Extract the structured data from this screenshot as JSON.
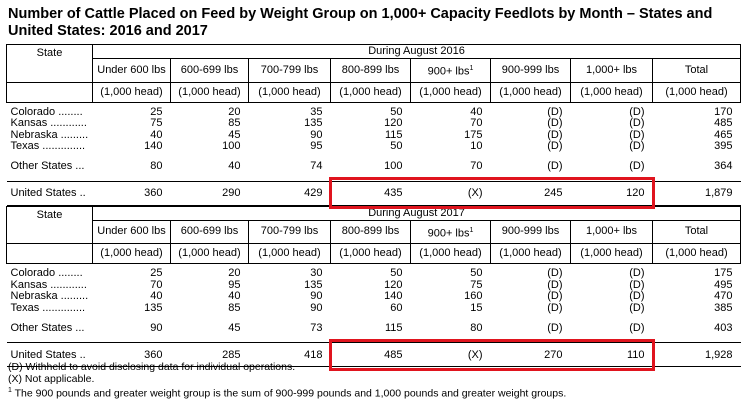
{
  "title": "Number of Cattle Placed on Feed by Weight Group on 1,000+ Capacity Feedlots by Month – States and United States: 2016 and 2017",
  "sections": [
    {
      "period": "During August 2016",
      "state_header": "State",
      "columns": [
        {
          "text": "Under 600 lbs"
        },
        {
          "text": "600-699 lbs"
        },
        {
          "text": "700-799 lbs"
        },
        {
          "text": "800-899 lbs"
        },
        {
          "text": "900+ lbs",
          "note": "1"
        },
        {
          "text": "900-999 lbs"
        },
        {
          "text": "1,000+ lbs"
        },
        {
          "text": "Total"
        }
      ],
      "units": [
        "(1,000 head)",
        "(1,000 head)",
        "(1,000 head)",
        "(1,000 head)",
        "(1,000 head)",
        "(1,000 head)",
        "(1,000 head)",
        "(1,000 head)"
      ],
      "rows": [
        [
          "Colorado ........",
          "25",
          "20",
          "35",
          "50",
          "40",
          "(D)",
          "(D)",
          "170"
        ],
        [
          "Kansas ............",
          "75",
          "85",
          "135",
          "120",
          "70",
          "(D)",
          "(D)",
          "485"
        ],
        [
          "Nebraska .........",
          "40",
          "45",
          "90",
          "115",
          "175",
          "(D)",
          "(D)",
          "465"
        ],
        [
          "Texas ..............",
          "140",
          "100",
          "95",
          "50",
          "10",
          "(D)",
          "(D)",
          "395"
        ],
        [
          "Other States ...",
          "80",
          "40",
          "74",
          "100",
          "70",
          "(D)",
          "(D)",
          "364"
        ],
        [
          "United States ..",
          "360",
          "290",
          "429",
          "435",
          "(X)",
          "245",
          "120",
          "1,879"
        ]
      ]
    },
    {
      "period": "During August 2017",
      "state_header": "State",
      "columns": [
        {
          "text": "Under 600 lbs"
        },
        {
          "text": "600-699 lbs"
        },
        {
          "text": "700-799 lbs"
        },
        {
          "text": "800-899 lbs"
        },
        {
          "text": "900+ lbs",
          "note": "1"
        },
        {
          "text": "900-999 lbs"
        },
        {
          "text": "1,000+ lbs"
        },
        {
          "text": "Total"
        }
      ],
      "units": [
        "(1,000 head)",
        "(1,000 head)",
        "(1,000 head)",
        "(1,000 head)",
        "(1,000 head)",
        "(1,000 head)",
        "(1,000 head)",
        "(1,000 head)"
      ],
      "rows": [
        [
          "Colorado ........",
          "25",
          "20",
          "30",
          "50",
          "50",
          "(D)",
          "(D)",
          "175"
        ],
        [
          "Kansas ............",
          "70",
          "95",
          "135",
          "120",
          "75",
          "(D)",
          "(D)",
          "495"
        ],
        [
          "Nebraska .........",
          "40",
          "40",
          "90",
          "140",
          "160",
          "(D)",
          "(D)",
          "470"
        ],
        [
          "Texas ..............",
          "135",
          "85",
          "90",
          "60",
          "15",
          "(D)",
          "(D)",
          "385"
        ],
        [
          "Other States ...",
          "90",
          "45",
          "73",
          "115",
          "80",
          "(D)",
          "(D)",
          "403"
        ],
        [
          "United States ..",
          "360",
          "285",
          "418",
          "485",
          "(X)",
          "270",
          "110",
          "1,928"
        ]
      ]
    }
  ],
  "footnotes": [
    {
      "text": "(D) Withheld to avoid disclosing data for individual operations."
    },
    {
      "text": "(X) Not applicable."
    },
    {
      "mark": "1",
      "text": " The 900 pounds and greater weight group is the sum of 900-999 pounds and 1,000 pounds and greater weight groups."
    }
  ]
}
